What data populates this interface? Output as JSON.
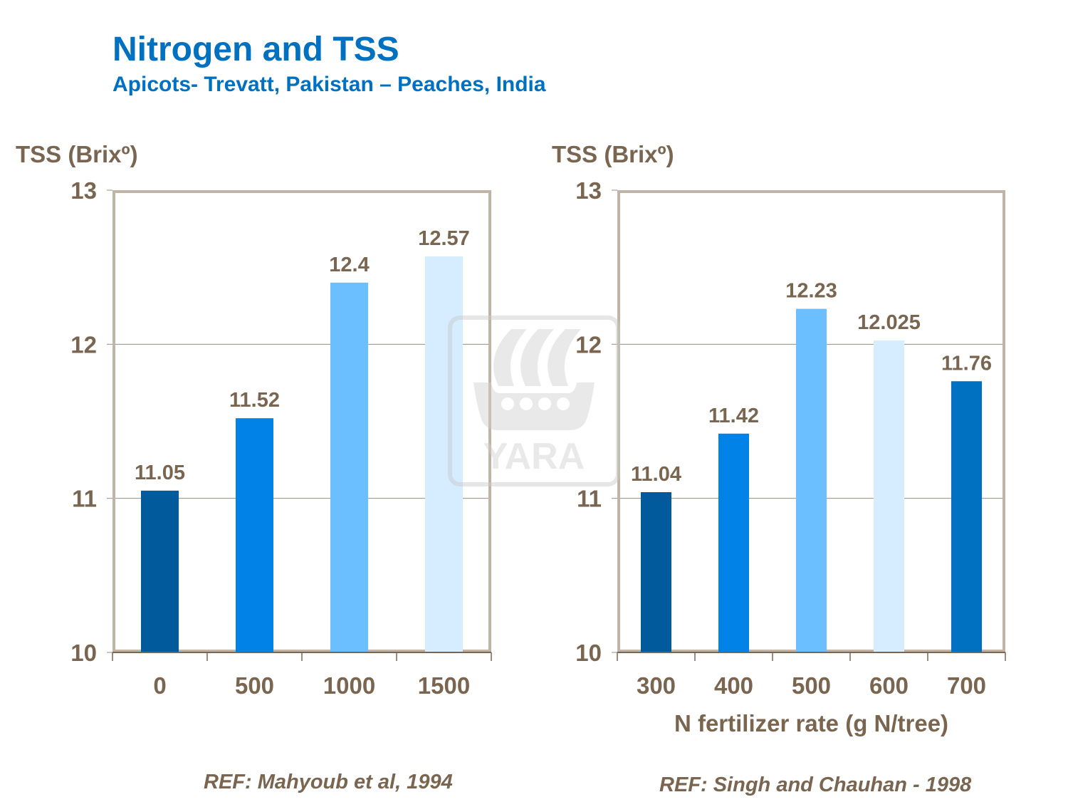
{
  "header": {
    "title": "Nitrogen and TSS",
    "subtitle": "Apicots- Trevatt, Pakistan – Peaches,  India"
  },
  "watermark": {
    "logo_text": "YARA"
  },
  "colors": {
    "text": "#7A6650",
    "title": "#0070C0",
    "frame": "#C0B4A8",
    "bars": [
      "#005A9C",
      "#0082E6",
      "#6BBFFF",
      "#D6ECFF",
      "#0070C0"
    ]
  },
  "chart_data": [
    {
      "type": "bar",
      "ylabel": "TSS (Brixº)",
      "xlabel": "",
      "ylim": [
        10,
        13
      ],
      "yticks": [
        "10",
        "11",
        "12",
        "13"
      ],
      "grid": true,
      "categories": [
        "0",
        "500",
        "1000",
        "1500"
      ],
      "values": [
        11.05,
        11.52,
        12.4,
        12.57
      ],
      "data_labels": [
        "11.05",
        "11.52",
        "12.4",
        "12.57"
      ],
      "reference": "REF: Mahyoub et al, 1994"
    },
    {
      "type": "bar",
      "ylabel": "TSS (Brixº)",
      "xlabel": "N fertilizer rate (g N/tree)",
      "ylim": [
        10,
        13
      ],
      "yticks": [
        "10",
        "11",
        "12",
        "13"
      ],
      "grid": true,
      "categories": [
        "300",
        "400",
        "500",
        "600",
        "700"
      ],
      "values": [
        11.04,
        11.42,
        12.23,
        12.025,
        11.76
      ],
      "data_labels": [
        "11.04",
        "11.42",
        "12.23",
        "12.025",
        "11.76"
      ],
      "reference": "REF: Singh and Chauhan - 1998"
    }
  ]
}
